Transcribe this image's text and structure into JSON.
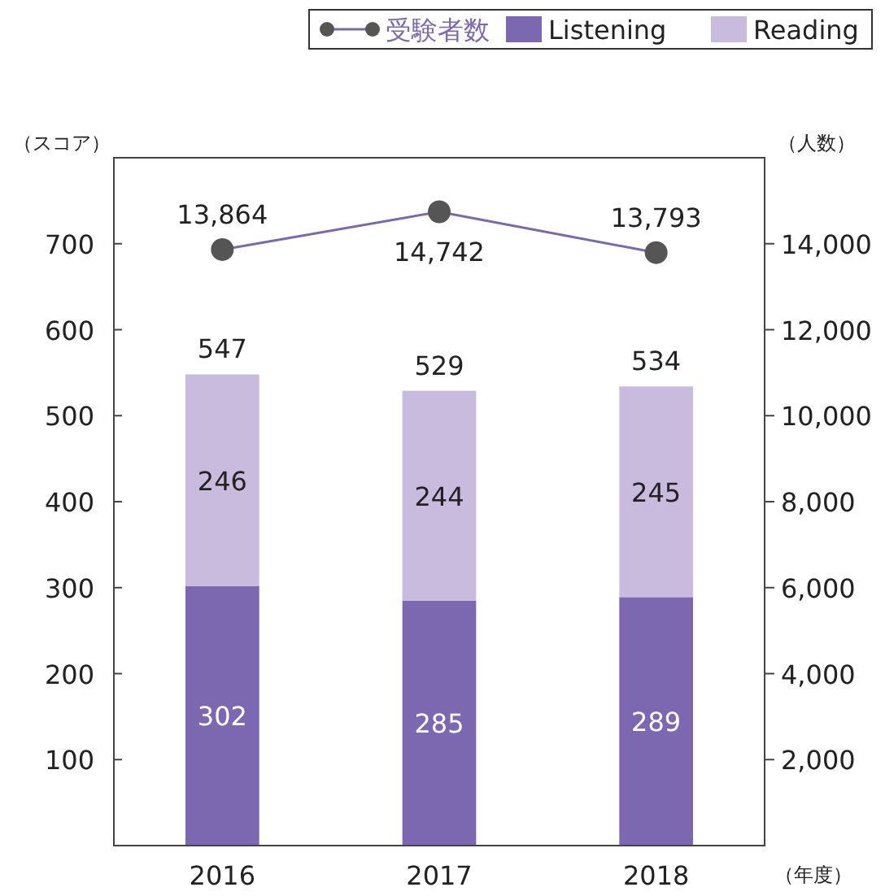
{
  "chart_data": {
    "type": "bar",
    "stacked": true,
    "categories": [
      "2016",
      "2017",
      "2018"
    ],
    "series": [
      {
        "name": "受験者数",
        "type": "line",
        "axis": "y2",
        "color": "#7a6aaa",
        "values": [
          13864,
          14742,
          13793
        ],
        "value_labels": [
          "13,864",
          "14,742",
          "13,793"
        ],
        "marker": "circle",
        "line_style": "solid"
      },
      {
        "name": "Listening",
        "color": "#7b68b0",
        "values": [
          302,
          285,
          289
        ]
      },
      {
        "name": "Reading",
        "color": "#c9bbdd",
        "values": [
          246,
          244,
          245
        ]
      }
    ],
    "totals": [
      "547",
      "529",
      "534"
    ],
    "data_labels": true,
    "ylim": [
      0,
      800
    ],
    "yticks": [
      100,
      200,
      300,
      400,
      500,
      600,
      700
    ],
    "y2lim": [
      0,
      16000
    ],
    "y2ticks": [
      {
        "value": 2000,
        "label": "2,000"
      },
      {
        "value": 4000,
        "label": "4,000"
      },
      {
        "value": 6000,
        "label": "6,000"
      },
      {
        "value": 8000,
        "label": "8,000"
      },
      {
        "value": 10000,
        "label": "10,000"
      },
      {
        "value": 12000,
        "label": "12,000"
      },
      {
        "value": 14000,
        "label": "14,000"
      }
    ],
    "ylabel": "（スコア）",
    "y2label": "（人数）",
    "xlabel": "（年度）",
    "legend": "top right"
  }
}
